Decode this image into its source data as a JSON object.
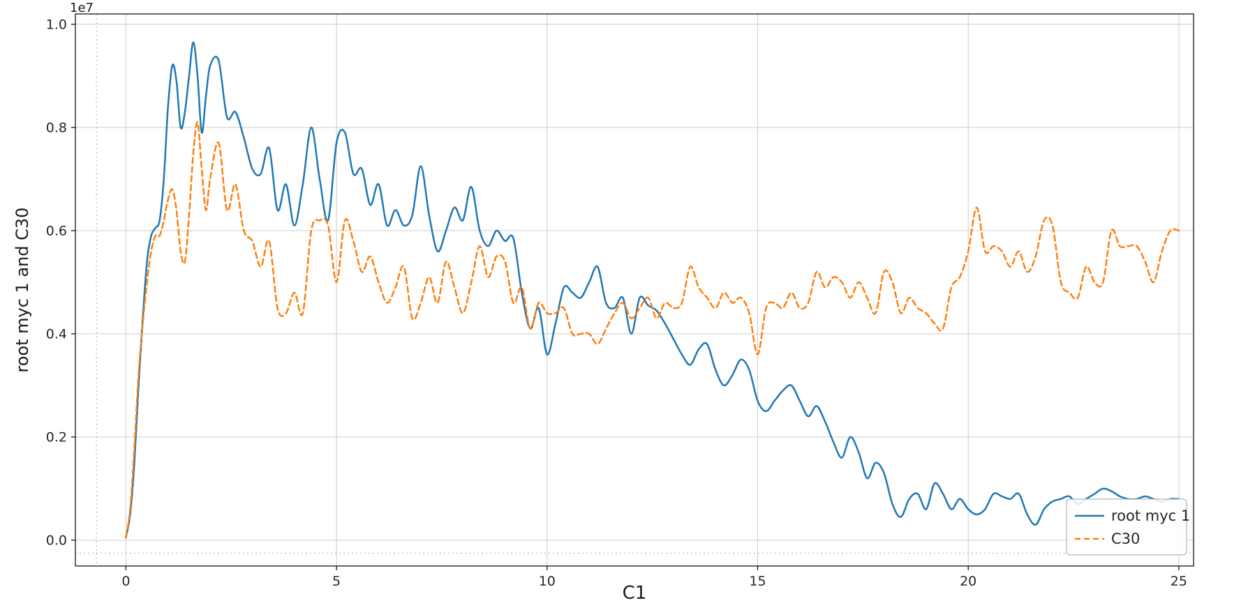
{
  "chart_data": {
    "type": "line",
    "title": "",
    "xlabel": "C1",
    "ylabel": "root myc 1 and C30",
    "y_offset_label": "1e7",
    "grid": true,
    "legend_position": "lower right",
    "x_range": [
      -1.2,
      25.35
    ],
    "y_range_1e7": [
      -0.05,
      1.02
    ],
    "x_ticks": [
      0,
      5,
      10,
      15,
      20,
      25
    ],
    "x_tick_labels": [
      "0",
      "5",
      "10",
      "15",
      "20",
      "25"
    ],
    "y_ticks_1e7": [
      0.0,
      0.2,
      0.4,
      0.6,
      0.8,
      1.0
    ],
    "y_tick_labels": [
      "0.0",
      "0.2",
      "0.4",
      "0.6",
      "0.8",
      "1.0"
    ],
    "guides": {
      "x_dotted": -0.7,
      "y_dotted_1e7": -0.025
    },
    "colors": {
      "grid": "#cccccc",
      "spine": "#000000",
      "text": "#262626",
      "legend_border": "#b3b3b3",
      "background": "#ffffff"
    },
    "value_unit": "1e6",
    "x": [
      0,
      0.1,
      0.2,
      0.3,
      0.4,
      0.5,
      0.6,
      0.7,
      0.8,
      0.9,
      1,
      1.1,
      1.2,
      1.3,
      1.4,
      1.5,
      1.6,
      1.7,
      1.8,
      1.9,
      2,
      2.2,
      2.4,
      2.6,
      2.8,
      3,
      3.2,
      3.4,
      3.6,
      3.8,
      4,
      4.2,
      4.4,
      4.6,
      4.8,
      5,
      5.2,
      5.4,
      5.6,
      5.8,
      6,
      6.2,
      6.4,
      6.6,
      6.8,
      7,
      7.2,
      7.4,
      7.6,
      7.8,
      8,
      8.2,
      8.4,
      8.6,
      8.8,
      9,
      9.2,
      9.4,
      9.6,
      9.8,
      10,
      10.2,
      10.4,
      10.6,
      10.8,
      11,
      11.2,
      11.4,
      11.6,
      11.8,
      12,
      12.2,
      12.4,
      12.6,
      12.8,
      13,
      13.2,
      13.4,
      13.6,
      13.8,
      14,
      14.2,
      14.4,
      14.6,
      14.8,
      15,
      15.2,
      15.4,
      15.6,
      15.8,
      16,
      16.2,
      16.4,
      16.6,
      16.8,
      17,
      17.2,
      17.4,
      17.6,
      17.8,
      18,
      18.2,
      18.4,
      18.6,
      18.8,
      19,
      19.2,
      19.4,
      19.6,
      19.8,
      20,
      20.2,
      20.4,
      20.6,
      20.8,
      21,
      21.2,
      21.4,
      21.6,
      21.8,
      22,
      22.2,
      22.4,
      22.6,
      22.8,
      23,
      23.2,
      23.4,
      23.6,
      23.8,
      24,
      24.2,
      24.4,
      24.6,
      24.8,
      25
    ],
    "series": [
      {
        "name": "root myc 1",
        "color": "#1f77b4",
        "style": "solid",
        "values_1e6": [
          0.05,
          0.5,
          1.5,
          3,
          4.3,
          5.4,
          5.9,
          6.05,
          6.2,
          7,
          8.4,
          9.2,
          8.9,
          8,
          8.3,
          9,
          9.65,
          9,
          7.9,
          8.6,
          9.2,
          9.3,
          8.2,
          8.3,
          7.8,
          7.2,
          7.1,
          7.6,
          6.4,
          6.9,
          6.1,
          6.9,
          8,
          7,
          6.2,
          7.7,
          7.9,
          7.1,
          7.2,
          6.5,
          6.9,
          6.1,
          6.4,
          6.1,
          6.3,
          7.25,
          6.3,
          5.6,
          6,
          6.45,
          6.2,
          6.85,
          6,
          5.7,
          6,
          5.8,
          5.85,
          4.8,
          4.1,
          4.5,
          3.6,
          4.2,
          4.9,
          4.8,
          4.7,
          5,
          5.3,
          4.6,
          4.5,
          4.7,
          4,
          4.7,
          4.55,
          4.45,
          4.2,
          3.9,
          3.6,
          3.4,
          3.7,
          3.8,
          3.3,
          3,
          3.2,
          3.5,
          3.3,
          2.7,
          2.5,
          2.7,
          2.9,
          3,
          2.7,
          2.4,
          2.6,
          2.3,
          1.9,
          1.6,
          2,
          1.7,
          1.2,
          1.5,
          1.3,
          0.7,
          0.45,
          0.8,
          0.9,
          0.6,
          1.1,
          0.9,
          0.6,
          0.8,
          0.6,
          0.5,
          0.6,
          0.9,
          0.85,
          0.8,
          0.9,
          0.5,
          0.3,
          0.6,
          0.75,
          0.8,
          0.85,
          0.7,
          0.8,
          0.9,
          1,
          0.95,
          0.85,
          0.8,
          0.8,
          0.85,
          0.8,
          0.75,
          0.8,
          0.8
        ]
      },
      {
        "name": "C30",
        "color": "#ff7f0e",
        "style": "dashed",
        "values_1e6": [
          0.05,
          0.6,
          1.8,
          3.2,
          4.2,
          5,
          5.6,
          5.9,
          5.9,
          6.2,
          6.6,
          6.8,
          6.4,
          5.6,
          5.4,
          6.3,
          7.5,
          8.1,
          7.2,
          6.4,
          7,
          7.7,
          6.4,
          6.9,
          6,
          5.8,
          5.3,
          5.8,
          4.5,
          4.4,
          4.8,
          4.4,
          6,
          6.2,
          6.1,
          5,
          6.2,
          5.8,
          5.2,
          5.5,
          5,
          4.6,
          4.9,
          5.3,
          4.3,
          4.6,
          5.1,
          4.6,
          5.4,
          4.9,
          4.4,
          5,
          5.7,
          5.1,
          5.5,
          5.4,
          4.6,
          4.9,
          4.1,
          4.6,
          4.4,
          4.4,
          4.5,
          4,
          4,
          4,
          3.8,
          4.1,
          4.4,
          4.6,
          4.3,
          4.5,
          4.7,
          4.3,
          4.6,
          4.5,
          4.6,
          5.3,
          4.9,
          4.7,
          4.5,
          4.8,
          4.6,
          4.7,
          4.4,
          3.6,
          4.5,
          4.6,
          4.5,
          4.8,
          4.5,
          4.6,
          5.2,
          4.9,
          5.1,
          5,
          4.7,
          5,
          4.7,
          4.4,
          5.2,
          5,
          4.4,
          4.7,
          4.5,
          4.4,
          4.2,
          4.1,
          4.9,
          5.1,
          5.6,
          6.45,
          5.6,
          5.7,
          5.6,
          5.3,
          5.6,
          5.2,
          5.5,
          6.2,
          6.1,
          5,
          4.8,
          4.7,
          5.3,
          5,
          5,
          6,
          5.7,
          5.7,
          5.7,
          5.4,
          5,
          5.6,
          6,
          6
        ]
      }
    ]
  }
}
